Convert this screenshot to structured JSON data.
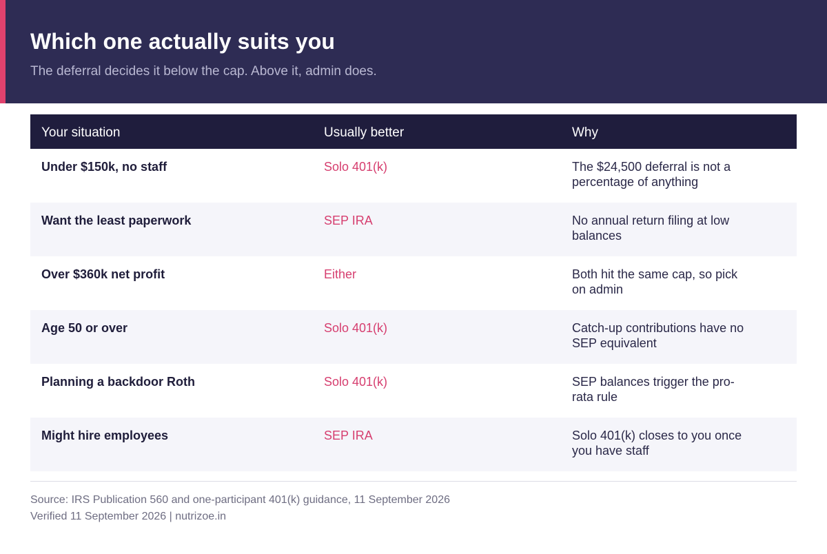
{
  "header": {
    "title": "Which one actually suits you",
    "subtitle": "The deferral decides it below the cap. Above it, admin does.",
    "accent_color": "#e0426e",
    "background_color": "#2e2c54"
  },
  "table": {
    "columns": [
      "Your situation",
      "Usually better",
      "Why"
    ],
    "rows": [
      {
        "situation": "Under $150k, no staff",
        "better": "Solo 401(k)",
        "why": "The $24,500 deferral is not a percentage of anything"
      },
      {
        "situation": "Want the least paperwork",
        "better": "SEP IRA",
        "why": "No annual return filing at low balances"
      },
      {
        "situation": "Over $360k net profit",
        "better": "Either",
        "why": "Both hit the same cap, so pick on admin"
      },
      {
        "situation": "Age 50 or over",
        "better": "Solo 401(k)",
        "why": "Catch-up contributions have no SEP equivalent"
      },
      {
        "situation": "Planning a backdoor Roth",
        "better": "Solo 401(k)",
        "why": "SEP balances trigger the pro-rata rule"
      },
      {
        "situation": "Might hire employees",
        "better": "SEP IRA",
        "why": "Solo 401(k) closes to you once you have staff"
      }
    ]
  },
  "footer": {
    "source": "Source: IRS Publication 560 and one-participant 401(k) guidance, 11 September 2026",
    "verified": "Verified 11 September 2026  |  nutrizoe.in"
  }
}
